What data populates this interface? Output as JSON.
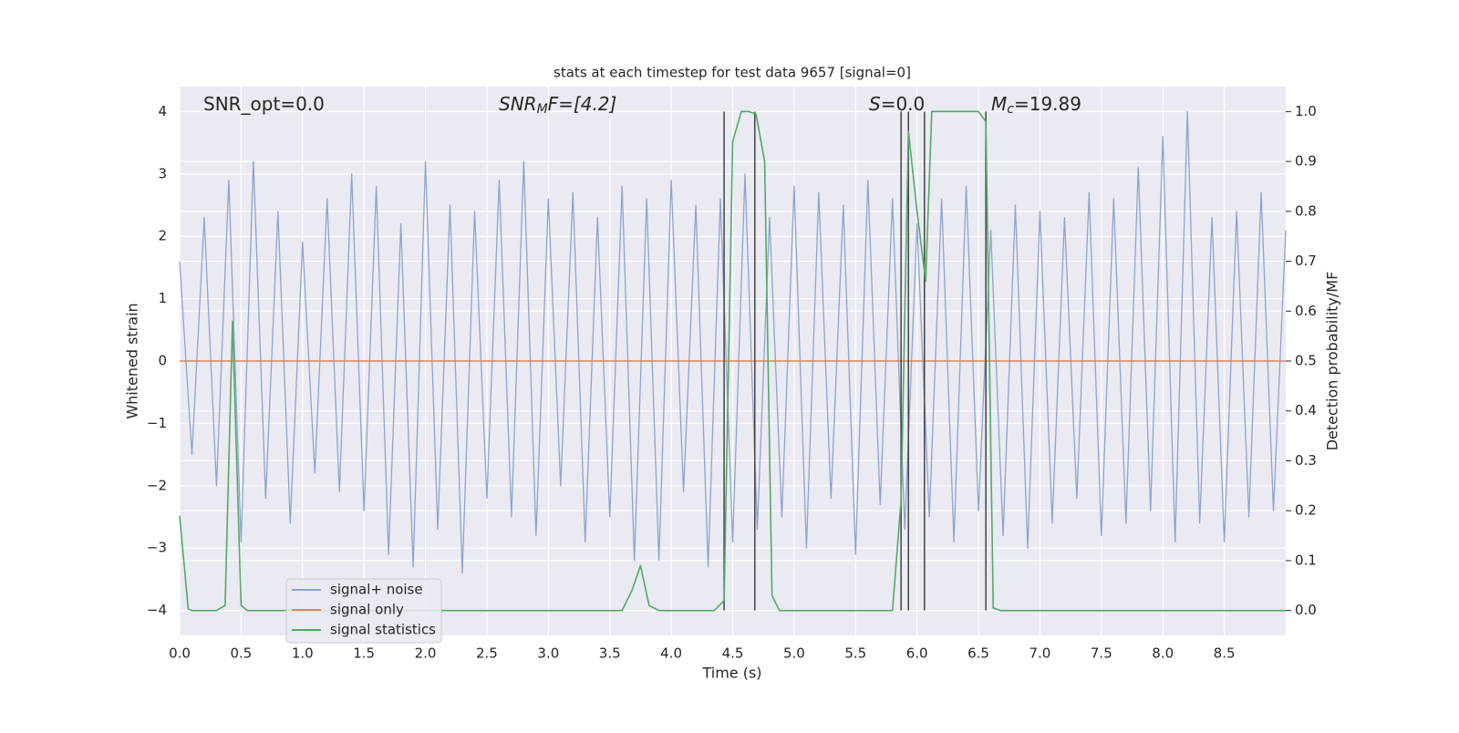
{
  "chart_data": {
    "type": "line",
    "title": "stats at each timestep for test data 9657 [signal=0]",
    "x_label": "Time (s)",
    "y_label": "Whitened strain",
    "y2_label": "Detection probability/MF",
    "annotations": [
      {
        "base": "SNR_opt=0.0"
      },
      {
        "base": "SNR",
        "sub": "M",
        "tail": "F=[4.2]"
      },
      {
        "base": "S",
        "tail": "=0.0"
      },
      {
        "base": "M",
        "sub": "c",
        "tail": "=19.89"
      }
    ],
    "xlim": [
      0,
      9.0
    ],
    "ylim": [
      -4.4,
      4.4
    ],
    "y2lim": [
      -0.05,
      1.05
    ],
    "xticks": [
      {
        "value": 0,
        "label": "0.0"
      },
      {
        "value": 0.5,
        "label": "0.5"
      },
      {
        "value": 1,
        "label": "1.0"
      },
      {
        "value": 1.5,
        "label": "1.5"
      },
      {
        "value": 2,
        "label": "2.0"
      },
      {
        "value": 2.5,
        "label": "2.5"
      },
      {
        "value": 3,
        "label": "3.0"
      },
      {
        "value": 3.5,
        "label": "3.5"
      },
      {
        "value": 4,
        "label": "4.0"
      },
      {
        "value": 4.5,
        "label": "4.5"
      },
      {
        "value": 5,
        "label": "5.0"
      },
      {
        "value": 5.5,
        "label": "5.5"
      },
      {
        "value": 6,
        "label": "6.0"
      },
      {
        "value": 6.5,
        "label": "6.5"
      },
      {
        "value": 7,
        "label": "7.0"
      },
      {
        "value": 7.5,
        "label": "7.5"
      },
      {
        "value": 8,
        "label": "8.0"
      },
      {
        "value": 8.5,
        "label": "8.5"
      }
    ],
    "yticks": [
      {
        "value": -4,
        "label": "−4"
      },
      {
        "value": -3,
        "label": "−3"
      },
      {
        "value": -2,
        "label": "−2"
      },
      {
        "value": -1,
        "label": "−1"
      },
      0,
      1,
      2,
      3,
      4
    ],
    "y2ticks": [
      {
        "value": 0,
        "label": "0.0"
      },
      {
        "value": 0.1,
        "label": "0.1"
      },
      {
        "value": 0.2,
        "label": "0.2"
      },
      {
        "value": 0.3,
        "label": "0.3"
      },
      {
        "value": 0.4,
        "label": "0.4"
      },
      {
        "value": 0.5,
        "label": "0.5"
      },
      {
        "value": 0.6,
        "label": "0.6"
      },
      {
        "value": 0.7,
        "label": "0.7"
      },
      {
        "value": 0.8,
        "label": "0.8"
      },
      {
        "value": 0.9,
        "label": "0.9"
      },
      {
        "value": 1,
        "label": "1.0"
      }
    ],
    "grid": true,
    "legend": "lower left",
    "vlines": [
      4.43,
      4.68,
      5.87,
      5.93,
      6.06,
      6.56
    ],
    "vline_color": "#444444",
    "series": [
      {
        "name": "signal+ noise",
        "color": "#8fa3cc",
        "x": [
          0,
          0.1,
          0.2,
          0.3,
          0.4,
          0.5,
          0.6,
          0.7,
          0.8,
          0.9,
          1,
          1.1,
          1.2,
          1.3,
          1.4,
          1.5,
          1.6,
          1.7,
          1.8,
          1.9,
          2,
          2.1,
          2.2,
          2.3,
          2.4,
          2.5,
          2.6,
          2.7,
          2.8,
          2.9,
          3,
          3.1,
          3.2,
          3.3,
          3.4,
          3.5,
          3.6,
          3.7,
          3.8,
          3.9,
          4,
          4.1,
          4.2,
          4.3,
          4.4,
          4.5,
          4.6,
          4.7,
          4.8,
          4.9,
          5,
          5.1,
          5.2,
          5.3,
          5.4,
          5.5,
          5.6,
          5.7,
          5.8,
          5.9,
          6,
          6.1,
          6.2,
          6.3,
          6.4,
          6.5,
          6.6,
          6.7,
          6.8,
          6.9,
          7,
          7.1,
          7.2,
          7.3,
          7.4,
          7.5,
          7.6,
          7.7,
          7.8,
          7.9,
          8,
          8.1,
          8.2,
          8.3,
          8.4,
          8.5,
          8.6,
          8.7,
          8.8,
          8.9,
          9
        ],
        "values": [
          1.6,
          -1.5,
          2.3,
          -2.0,
          2.9,
          -2.9,
          3.2,
          -2.2,
          2.4,
          -2.6,
          1.9,
          -1.8,
          2.6,
          -2.1,
          3.0,
          -2.4,
          2.8,
          -3.1,
          2.2,
          -3.3,
          3.2,
          -2.7,
          2.5,
          -3.4,
          2.4,
          -2.2,
          2.9,
          -2.5,
          3.2,
          -2.8,
          2.6,
          -2.0,
          2.7,
          -2.9,
          2.3,
          -2.5,
          2.8,
          -3.2,
          2.6,
          -3.2,
          2.9,
          -2.1,
          2.5,
          -3.3,
          2.6,
          -2.9,
          3.0,
          -2.7,
          2.3,
          -2.5,
          2.8,
          -3.0,
          2.7,
          -2.2,
          2.5,
          -3.1,
          2.9,
          -2.3,
          2.6,
          -2.7,
          2.2,
          -2.5,
          2.6,
          -2.9,
          2.8,
          -2.4,
          2.1,
          -2.8,
          2.5,
          -3.0,
          2.4,
          -2.6,
          2.3,
          -2.2,
          2.7,
          -2.8,
          2.6,
          -2.6,
          3.1,
          -2.4,
          3.6,
          -2.9,
          4.0,
          -2.6,
          2.3,
          -2.9,
          2.4,
          -2.5,
          2.7,
          -2.4,
          2.1
        ]
      },
      {
        "name": "signal only",
        "color": "#dd8452",
        "x": [
          0,
          9
        ],
        "values": [
          0,
          0
        ]
      },
      {
        "name": "signal statistics",
        "color": "#55a868",
        "axis": "y2",
        "x": [
          0,
          0.07,
          0.1,
          0.3,
          0.37,
          0.43,
          0.5,
          0.55,
          3.6,
          3.68,
          3.75,
          3.82,
          3.9,
          4.35,
          4.43,
          4.5,
          4.57,
          4.63,
          4.69,
          4.76,
          4.82,
          4.88,
          5.8,
          5.87,
          5.93,
          6.0,
          6.07,
          6.12,
          6.5,
          6.56,
          6.62,
          6.68,
          9
        ],
        "values": [
          0.19,
          0.003,
          0,
          0,
          0.01,
          0.58,
          0.01,
          0,
          0,
          0.04,
          0.09,
          0.01,
          0,
          0,
          0.02,
          0.94,
          1.0,
          1.0,
          0.995,
          0.9,
          0.03,
          0,
          0,
          0.22,
          0.96,
          0.8,
          0.66,
          1.0,
          1.0,
          0.98,
          0.005,
          0,
          0
        ]
      }
    ]
  }
}
